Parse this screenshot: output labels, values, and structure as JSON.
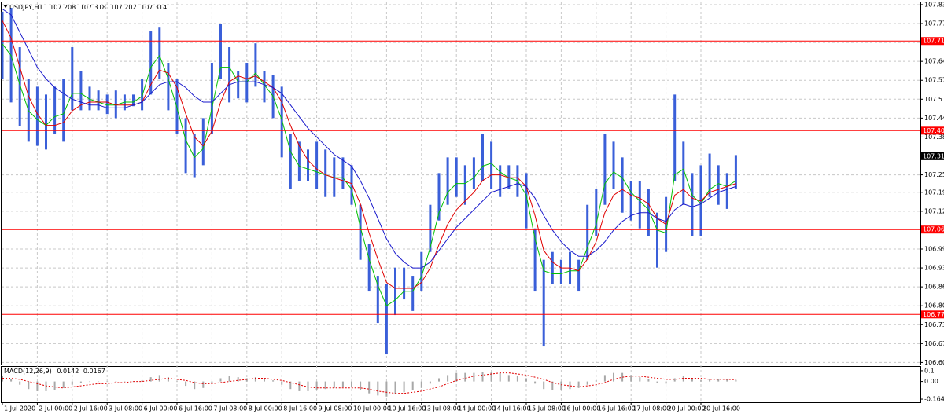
{
  "chart_data": [
    {
      "type": "hilo",
      "title": "USDJPY,H1",
      "info_values": [
        107.208,
        107.318,
        107.202,
        107.314
      ],
      "categories": [
        "1 Jul 2020",
        null,
        null,
        null,
        "2 Jul 00:00",
        null,
        null,
        null,
        "2 Jul 16:00",
        null,
        null,
        null,
        "3 Jul 08:00",
        null,
        null,
        null,
        "6 Jul 00:00",
        null,
        null,
        null,
        "6 Jul 16:00",
        null,
        null,
        null,
        "7 Jul 08:00",
        null,
        null,
        null,
        "8 Jul 00:00",
        null,
        null,
        null,
        "8 Jul 16:00",
        null,
        null,
        null,
        "9 Jul 08:00",
        null,
        null,
        null,
        "10 Jul 00:00",
        null,
        null,
        null,
        "10 Jul 16:00",
        null,
        null,
        null,
        "13 Jul 08:00",
        null,
        null,
        null,
        "14 Jul 00:00",
        null,
        null,
        null,
        "14 Jul 16:00",
        null,
        null,
        null,
        "15 Jul 08:00",
        null,
        null,
        null,
        "16 Jul 00:00",
        null,
        null,
        null,
        "16 Jul 16:00",
        null,
        null,
        null,
        "17 Jul 08:00",
        null,
        null,
        null,
        "20 Jul 00:00",
        null,
        null,
        null,
        "20 Jul 16:00",
        null,
        null,
        null,
        null
      ],
      "high": [
        107.811,
        107.824,
        107.689,
        107.58,
        107.553,
        107.526,
        107.553,
        107.58,
        107.689,
        107.608,
        107.553,
        107.54,
        107.526,
        107.54,
        107.526,
        107.526,
        107.58,
        107.743,
        107.756,
        107.635,
        107.58,
        107.445,
        107.391,
        107.445,
        107.635,
        107.77,
        107.689,
        107.608,
        107.635,
        107.702,
        107.608,
        107.594,
        107.553,
        107.391,
        107.364,
        107.337,
        107.364,
        107.337,
        107.31,
        107.31,
        107.283,
        107.147,
        107.012,
        106.903,
        106.876,
        106.931,
        106.931,
        106.903,
        106.985,
        107.147,
        107.256,
        107.31,
        107.31,
        107.283,
        107.31,
        107.391,
        107.364,
        107.283,
        107.283,
        107.283,
        107.256,
        107.066,
        106.958,
        106.985,
        106.958,
        106.985,
        106.958,
        107.147,
        107.201,
        107.391,
        107.364,
        107.31,
        107.228,
        107.228,
        107.201,
        107.12,
        107.174,
        107.526,
        107.364,
        107.256,
        107.283,
        107.323,
        107.283,
        107.256,
        107.318
      ],
      "low": [
        107.58,
        107.499,
        107.418,
        107.364,
        107.35,
        107.337,
        107.391,
        107.364,
        107.472,
        107.472,
        107.472,
        107.472,
        107.459,
        107.445,
        107.472,
        107.486,
        107.472,
        107.526,
        107.58,
        107.472,
        107.391,
        107.256,
        107.242,
        107.283,
        107.391,
        107.58,
        107.499,
        107.513,
        107.499,
        107.553,
        107.499,
        107.445,
        107.31,
        107.201,
        107.228,
        107.228,
        107.201,
        107.174,
        107.174,
        107.201,
        107.147,
        106.958,
        106.849,
        106.741,
        106.633,
        106.768,
        106.822,
        106.782,
        106.849,
        106.985,
        107.093,
        107.147,
        107.174,
        107.147,
        107.201,
        107.228,
        107.201,
        107.174,
        107.201,
        107.174,
        107.066,
        106.849,
        106.66,
        106.876,
        106.876,
        106.876,
        106.849,
        106.958,
        107.039,
        107.147,
        107.201,
        107.12,
        107.093,
        107.066,
        107.039,
        106.931,
        106.985,
        107.228,
        107.147,
        107.039,
        107.039,
        107.174,
        107.147,
        107.133,
        107.202
      ],
      "color": "#3a5fd9",
      "overlays": [
        {
          "color": "#00c000",
          "values": [
            107.7,
            107.66,
            107.56,
            107.47,
            107.44,
            107.42,
            107.45,
            107.46,
            107.53,
            107.53,
            107.51,
            107.5,
            107.49,
            107.49,
            107.5,
            107.5,
            107.52,
            107.62,
            107.66,
            107.58,
            107.48,
            107.37,
            107.31,
            107.34,
            107.48,
            107.62,
            107.62,
            107.57,
            107.57,
            107.6,
            107.56,
            107.52,
            107.44,
            107.33,
            107.28,
            107.27,
            107.26,
            107.25,
            107.24,
            107.24,
            107.2,
            107.07,
            106.96,
            106.87,
            106.8,
            106.82,
            106.85,
            106.85,
            106.9,
            107.0,
            107.12,
            107.19,
            107.22,
            107.22,
            107.24,
            107.28,
            107.29,
            107.26,
            107.24,
            107.23,
            107.18,
            107.03,
            106.92,
            106.91,
            106.91,
            106.92,
            106.92,
            107.0,
            107.08,
            107.22,
            107.26,
            107.24,
            107.19,
            107.16,
            107.13,
            107.06,
            107.05,
            107.25,
            107.27,
            107.18,
            107.15,
            107.2,
            107.22,
            107.21,
            107.23
          ]
        },
        {
          "color": "#e00000",
          "values": [
            107.78,
            107.72,
            107.62,
            107.52,
            107.46,
            107.42,
            107.42,
            107.43,
            107.47,
            107.49,
            107.5,
            107.5,
            107.5,
            107.49,
            107.49,
            107.49,
            107.5,
            107.56,
            107.61,
            107.6,
            107.55,
            107.46,
            107.38,
            107.35,
            107.4,
            107.5,
            107.57,
            107.59,
            107.58,
            107.59,
            107.57,
            107.55,
            107.5,
            107.42,
            107.35,
            107.3,
            107.27,
            107.25,
            107.24,
            107.23,
            107.22,
            107.15,
            107.05,
            106.96,
            106.88,
            106.86,
            106.86,
            106.86,
            106.88,
            106.93,
            107.01,
            107.08,
            107.13,
            107.16,
            107.19,
            107.23,
            107.25,
            107.25,
            107.24,
            107.24,
            107.21,
            107.11,
            106.99,
            106.95,
            106.93,
            106.93,
            106.92,
            106.96,
            107.02,
            107.12,
            107.18,
            107.2,
            107.18,
            107.17,
            107.15,
            107.1,
            107.08,
            107.18,
            107.2,
            107.17,
            107.16,
            107.19,
            107.2,
            107.21,
            107.22
          ]
        },
        {
          "color": "#1a1acc",
          "values": [
            107.82,
            107.8,
            107.74,
            107.68,
            107.62,
            107.58,
            107.55,
            107.53,
            107.51,
            107.5,
            107.49,
            107.49,
            107.48,
            107.48,
            107.48,
            107.49,
            107.5,
            107.53,
            107.56,
            107.57,
            107.57,
            107.55,
            107.52,
            107.5,
            107.5,
            107.53,
            107.56,
            107.57,
            107.57,
            107.57,
            107.56,
            107.55,
            107.53,
            107.49,
            107.45,
            107.41,
            107.38,
            107.35,
            107.32,
            107.3,
            107.28,
            107.23,
            107.17,
            107.1,
            107.03,
            106.98,
            106.95,
            106.93,
            106.93,
            106.95,
            106.99,
            107.03,
            107.07,
            107.1,
            107.13,
            107.16,
            107.19,
            107.2,
            107.21,
            107.22,
            107.21,
            107.17,
            107.11,
            107.06,
            107.02,
            106.99,
            106.97,
            106.97,
            106.99,
            107.02,
            107.06,
            107.09,
            107.11,
            107.12,
            107.12,
            107.1,
            107.09,
            107.13,
            107.15,
            107.14,
            107.15,
            107.17,
            107.19,
            107.2,
            107.21
          ]
        }
      ],
      "levels": [
        {
          "value": 107.71,
          "label": "107.710"
        },
        107.402,
        107.062,
        {
          "value": 106.77,
          "label": "106.770"
        }
      ],
      "level_color": "#ff0000",
      "current_price": 107.314,
      "ylim": [
        106.598,
        107.843
      ],
      "yticks": [
        107.835,
        {
          "value": 107.77,
          "label": "107.770"
        },
        107.705,
        {
          "value": 107.64,
          "label": "107.640"
        },
        107.575,
        {
          "value": 107.51,
          "label": "107.510"
        },
        107.445,
        {
          "value": 107.38,
          "label": "107.380"
        },
        {
          "value": 107.25,
          "label": "107.250"
        },
        {
          "value": 107.19,
          "label": "107.190"
        },
        107.125,
        106.995,
        {
          "value": 106.93,
          "label": "106.930"
        },
        106.865,
        {
          "value": 106.8,
          "label": "106.800"
        },
        106.735,
        {
          "value": 106.67,
          "label": "106.670"
        },
        106.605
      ],
      "grid": true
    },
    {
      "type": "macd",
      "title": "MACD(12,26,9)",
      "info_values": [
        0.0142,
        0.0167
      ],
      "histogram": {
        "color": "#a8a8a8",
        "values": [
          0.05,
          0.02,
          -0.03,
          -0.07,
          -0.09,
          -0.09,
          -0.08,
          -0.06,
          -0.03,
          -0.01,
          0.0,
          0.0,
          0.0,
          0.0,
          0.0,
          0.0,
          0.01,
          0.04,
          0.06,
          0.04,
          0.0,
          -0.04,
          -0.07,
          -0.06,
          -0.02,
          0.03,
          0.05,
          0.04,
          0.03,
          0.04,
          0.03,
          0.01,
          -0.03,
          -0.07,
          -0.09,
          -0.09,
          -0.08,
          -0.07,
          -0.06,
          -0.05,
          -0.05,
          -0.08,
          -0.11,
          -0.13,
          -0.14,
          -0.12,
          -0.1,
          -0.08,
          -0.06,
          -0.02,
          0.03,
          0.06,
          0.08,
          0.08,
          0.08,
          0.09,
          0.09,
          0.08,
          0.06,
          0.05,
          0.03,
          -0.02,
          -0.07,
          -0.08,
          -0.08,
          -0.07,
          -0.06,
          -0.03,
          0.01,
          0.06,
          0.08,
          0.08,
          0.06,
          0.04,
          0.02,
          -0.01,
          -0.02,
          0.03,
          0.05,
          0.03,
          0.01,
          0.02,
          0.02,
          0.02,
          0.0142
        ]
      },
      "signal": {
        "color": "#e00000",
        "values": [
          0.03,
          0.03,
          0.02,
          0.0,
          -0.02,
          -0.04,
          -0.05,
          -0.06,
          -0.05,
          -0.04,
          -0.03,
          -0.02,
          -0.02,
          -0.01,
          -0.01,
          0.0,
          0.0,
          0.01,
          0.02,
          0.03,
          0.02,
          0.01,
          -0.01,
          -0.02,
          -0.02,
          -0.01,
          0.0,
          0.01,
          0.02,
          0.03,
          0.03,
          0.02,
          0.01,
          -0.01,
          -0.03,
          -0.05,
          -0.06,
          -0.06,
          -0.06,
          -0.06,
          -0.06,
          -0.06,
          -0.07,
          -0.09,
          -0.1,
          -0.11,
          -0.11,
          -0.1,
          -0.09,
          -0.07,
          -0.05,
          -0.02,
          0.01,
          0.03,
          0.05,
          0.06,
          0.07,
          0.08,
          0.08,
          0.07,
          0.06,
          0.04,
          0.02,
          -0.01,
          -0.03,
          -0.04,
          -0.05,
          -0.04,
          -0.03,
          -0.01,
          0.02,
          0.04,
          0.05,
          0.05,
          0.04,
          0.03,
          0.02,
          0.02,
          0.03,
          0.03,
          0.03,
          0.02,
          0.02,
          0.02,
          0.0167
        ]
      },
      "ylim": [
        -0.193,
        0.136
      ],
      "yticks": [
        0.1,
        {
          "value": 0,
          "label": "0.00"
        },
        -0.164
      ]
    }
  ]
}
